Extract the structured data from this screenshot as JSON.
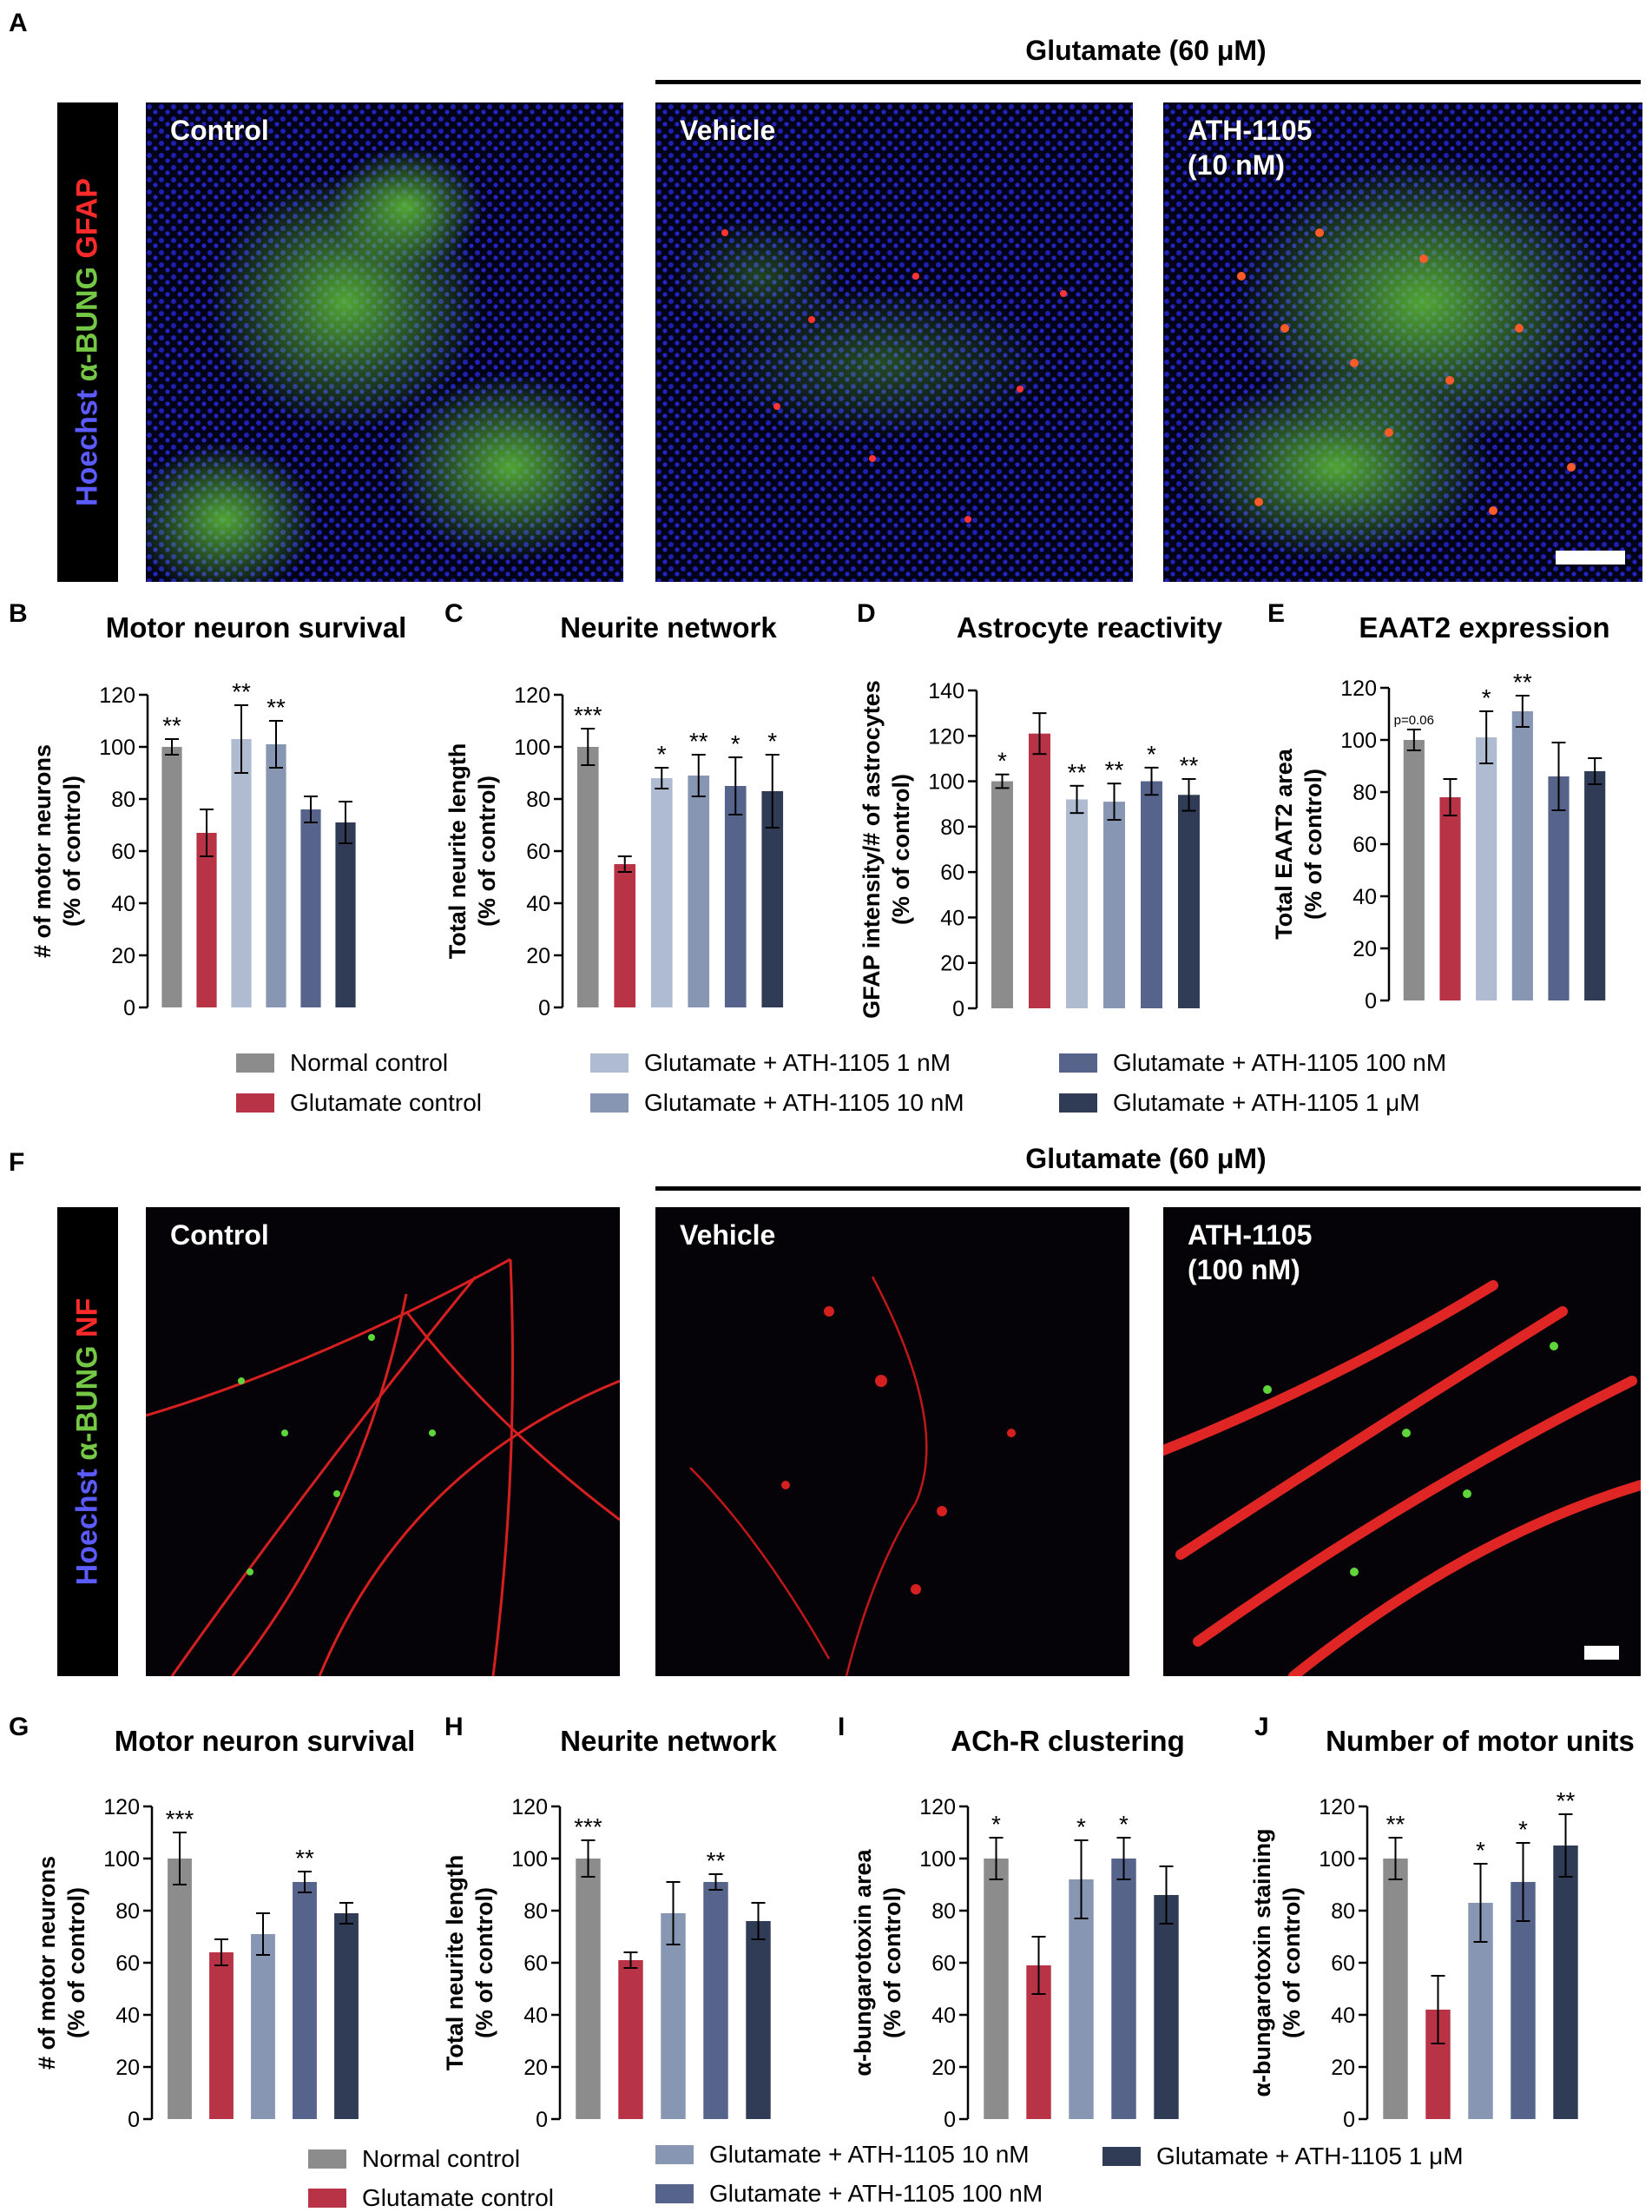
{
  "colors": {
    "normal": "#8c8c8c",
    "glutamate": "#b83346",
    "ath_1nM": "#aebbd0",
    "ath_10nM": "#8796b2",
    "ath_100nM": "#56648c",
    "ath_1uM": "#303b55",
    "hoechst": "#5b5bff",
    "bung": "#74c845",
    "gfap": "#ff2a2a",
    "nf": "#ff2a2a"
  },
  "panels": {
    "A": "A",
    "B": "B",
    "C": "C",
    "D": "D",
    "E": "E",
    "F": "F",
    "G": "G",
    "H": "H",
    "I": "I",
    "J": "J"
  },
  "top": {
    "glutamate_label": "Glutamate (60 μM)",
    "stain": {
      "hoechst": "Hoechst",
      "bung": "α-BUNG",
      "gfap": "GFAP"
    },
    "images": [
      {
        "label": "Control"
      },
      {
        "label": "Vehicle"
      },
      {
        "label": "ATH-1105\n(10 nM)"
      }
    ]
  },
  "bottom": {
    "glutamate_label": "Glutamate (60 μM)",
    "stain": {
      "hoechst": "Hoechst",
      "bung": "α-BUNG",
      "nf": "NF"
    },
    "images": [
      {
        "label": "Control"
      },
      {
        "label": "Vehicle"
      },
      {
        "label": "ATH-1105\n(100 nM)"
      }
    ]
  },
  "legend1": [
    {
      "label": "Normal control",
      "color": "#8c8c8c"
    },
    {
      "label": "Glutamate control",
      "color": "#b83346"
    },
    {
      "label": "Glutamate + ATH-1105 1 nM",
      "color": "#aebbd0"
    },
    {
      "label": "Glutamate + ATH-1105 10 nM",
      "color": "#8796b2"
    },
    {
      "label": "Glutamate + ATH-1105 100 nM",
      "color": "#56648c"
    },
    {
      "label": "Glutamate + ATH-1105 1 μM",
      "color": "#303b55"
    }
  ],
  "legend2": [
    {
      "label": "Normal control",
      "color": "#8c8c8c"
    },
    {
      "label": "Glutamate control",
      "color": "#b83346"
    },
    {
      "label": "Glutamate + ATH-1105 10 nM",
      "color": "#8796b2"
    },
    {
      "label": "Glutamate + ATH-1105 100 nM",
      "color": "#56648c"
    },
    {
      "label": "Glutamate + ATH-1105 1 μM",
      "color": "#303b55"
    }
  ],
  "chart_data": [
    {
      "id": "B",
      "type": "bar",
      "title": "Motor neuron survival",
      "ylabel": [
        "# of motor neurons",
        "(% of control)"
      ],
      "ylim": [
        0,
        120
      ],
      "yticks": [
        0,
        20,
        40,
        60,
        80,
        100,
        120
      ],
      "values": [
        100,
        67,
        103,
        101,
        76,
        71
      ],
      "errors": [
        3,
        9,
        13,
        9,
        5,
        8
      ],
      "stars": [
        "**",
        "",
        "**",
        "**",
        "",
        ""
      ],
      "colors": [
        "#8c8c8c",
        "#b83346",
        "#aebbd0",
        "#8796b2",
        "#56648c",
        "#303b55"
      ]
    },
    {
      "id": "C",
      "type": "bar",
      "title": "Neurite network",
      "ylabel": [
        "Total neurite length",
        "(% of control)"
      ],
      "ylim": [
        0,
        120
      ],
      "yticks": [
        0,
        20,
        40,
        60,
        80,
        100,
        120
      ],
      "values": [
        100,
        55,
        88,
        89,
        85,
        83
      ],
      "errors": [
        7,
        3,
        4,
        8,
        11,
        14
      ],
      "stars": [
        "***",
        "",
        "*",
        "**",
        "*",
        "*"
      ],
      "colors": [
        "#8c8c8c",
        "#b83346",
        "#aebbd0",
        "#8796b2",
        "#56648c",
        "#303b55"
      ]
    },
    {
      "id": "D",
      "type": "bar",
      "title": "Astrocyte reactivity",
      "ylabel": [
        "GFAP intensity/# of astrocytes",
        "(% of control)"
      ],
      "ylim": [
        0,
        140
      ],
      "yticks": [
        0,
        20,
        40,
        60,
        80,
        100,
        120,
        140
      ],
      "values": [
        100,
        121,
        92,
        91,
        100,
        94
      ],
      "errors": [
        3,
        9,
        6,
        8,
        6,
        7
      ],
      "stars": [
        "*",
        "",
        "**",
        "**",
        "*",
        "**"
      ],
      "colors": [
        "#8c8c8c",
        "#b83346",
        "#aebbd0",
        "#8796b2",
        "#56648c",
        "#303b55"
      ]
    },
    {
      "id": "E",
      "type": "bar",
      "title": "EAAT2 expression",
      "ylabel": [
        "Total EAAT2 area",
        "(% of control)"
      ],
      "ylim": [
        0,
        120
      ],
      "yticks": [
        0,
        20,
        40,
        60,
        80,
        100,
        120
      ],
      "values": [
        100,
        78,
        101,
        111,
        86,
        88
      ],
      "errors": [
        4,
        7,
        10,
        6,
        13,
        5
      ],
      "stars": [
        "p=0.06",
        "",
        "*",
        "**",
        "",
        ""
      ],
      "colors": [
        "#8c8c8c",
        "#b83346",
        "#aebbd0",
        "#8796b2",
        "#56648c",
        "#303b55"
      ]
    },
    {
      "id": "G",
      "type": "bar",
      "title": "Motor neuron survival",
      "ylabel": [
        "# of motor neurons",
        "(% of control)"
      ],
      "ylim": [
        0,
        120
      ],
      "yticks": [
        0,
        20,
        40,
        60,
        80,
        100,
        120
      ],
      "values": [
        100,
        64,
        71,
        91,
        79
      ],
      "errors": [
        10,
        5,
        8,
        4,
        4
      ],
      "stars": [
        "***",
        "",
        "",
        "**",
        ""
      ],
      "colors": [
        "#8c8c8c",
        "#b83346",
        "#8796b2",
        "#56648c",
        "#303b55"
      ]
    },
    {
      "id": "H",
      "type": "bar",
      "title": "Neurite network",
      "ylabel": [
        "Total neurite length",
        "(% of control)"
      ],
      "ylim": [
        0,
        120
      ],
      "yticks": [
        0,
        20,
        40,
        60,
        80,
        100,
        120
      ],
      "values": [
        100,
        61,
        79,
        91,
        76
      ],
      "errors": [
        7,
        3,
        12,
        3,
        7
      ],
      "stars": [
        "***",
        "",
        "",
        "**",
        ""
      ],
      "colors": [
        "#8c8c8c",
        "#b83346",
        "#8796b2",
        "#56648c",
        "#303b55"
      ]
    },
    {
      "id": "I",
      "type": "bar",
      "title": "ACh-R clustering",
      "ylabel": [
        "α-bungarotoxin area",
        "(% of control)"
      ],
      "ylim": [
        0,
        120
      ],
      "yticks": [
        0,
        20,
        40,
        60,
        80,
        100,
        120
      ],
      "values": [
        100,
        59,
        92,
        100,
        86
      ],
      "errors": [
        8,
        11,
        15,
        8,
        11
      ],
      "stars": [
        "*",
        "",
        "*",
        "*",
        ""
      ],
      "colors": [
        "#8c8c8c",
        "#b83346",
        "#8796b2",
        "#56648c",
        "#303b55"
      ]
    },
    {
      "id": "J",
      "type": "bar",
      "title": "Number of motor units",
      "ylabel": [
        "α-bungarotoxin staining",
        "(% of control)"
      ],
      "ylim": [
        0,
        120
      ],
      "yticks": [
        0,
        20,
        40,
        60,
        80,
        100,
        120
      ],
      "values": [
        100,
        42,
        83,
        91,
        105
      ],
      "errors": [
        8,
        13,
        15,
        15,
        12
      ],
      "stars": [
        "**",
        "",
        "*",
        "*",
        "**"
      ],
      "colors": [
        "#8c8c8c",
        "#b83346",
        "#8796b2",
        "#56648c",
        "#303b55"
      ]
    }
  ]
}
